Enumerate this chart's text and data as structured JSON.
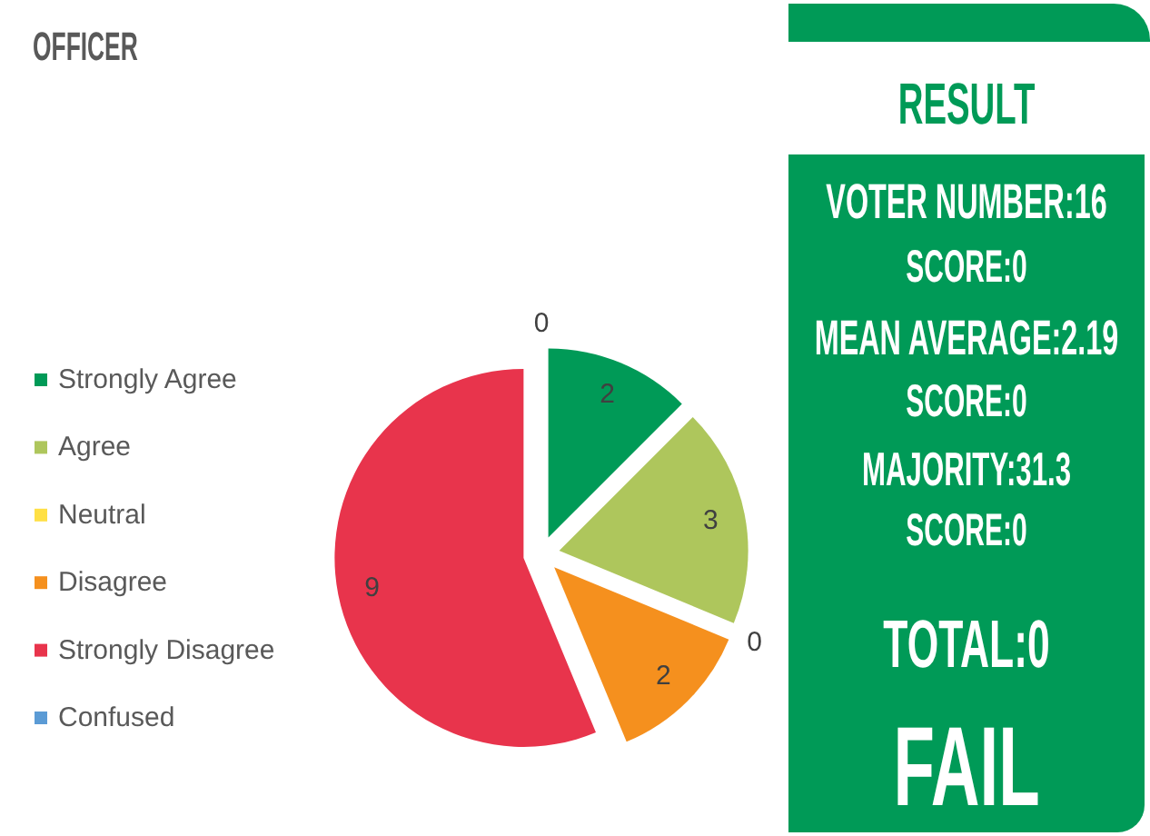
{
  "chart_data": [
    {
      "type": "pie",
      "title": "OFFICER",
      "categories": [
        "Strongly Agree",
        "Agree",
        "Neutral",
        "Disagree",
        "Strongly Disagree",
        "Confused"
      ],
      "values": [
        2,
        3,
        0,
        2,
        9,
        0
      ],
      "value_labels": [
        "2",
        "3",
        "0",
        "2",
        "9",
        "0"
      ],
      "colors": [
        "#009a57",
        "#aec65c",
        "#ffe045",
        "#f5901e",
        "#e8344c",
        "#5b9bd5"
      ],
      "legend": "left"
    },
    {
      "type": "other",
      "title": "RESULT",
      "annotations": [
        "VOTER NUMBER:16",
        "SCORE:0",
        "MEAN AVERAGE:2.19",
        "SCORE:0",
        "MAJORITY:31.3",
        "SCORE:0",
        "TOTAL:0",
        "FAIL"
      ]
    }
  ]
}
